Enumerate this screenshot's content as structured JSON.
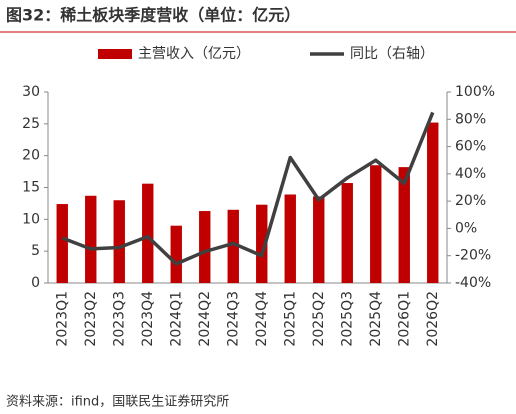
{
  "chart_data": {
    "type": "combo",
    "title": "图32：稀土板块季度营收（单位：亿元）",
    "source": "资料来源：ifind，国联民生证券研究所",
    "categories": [
      "2023Q1",
      "2023Q2",
      "2023Q3",
      "2023Q4",
      "2024Q1",
      "2024Q2",
      "2024Q3",
      "2024Q4",
      "2025Q1",
      "2025Q2",
      "2025Q3",
      "2025Q4",
      "2026Q1",
      "2026Q2"
    ],
    "series": [
      {
        "name": "主营收入（亿元）",
        "type": "bar",
        "color": "#c00000",
        "values": [
          12.4,
          13.7,
          13.0,
          15.6,
          9.0,
          11.3,
          11.5,
          12.3,
          13.9,
          13.6,
          15.7,
          18.5,
          18.2,
          25.2
        ]
      },
      {
        "name": "同比（右轴）",
        "type": "line",
        "axis": "y2",
        "color": "#404040",
        "values": [
          -7,
          -15,
          -14,
          -6,
          -26,
          -17,
          -11,
          -20,
          52,
          21,
          37,
          50,
          33,
          85
        ]
      }
    ],
    "ylim": [
      0,
      30
    ],
    "yticks": [
      0,
      5,
      10,
      15,
      20,
      25,
      30
    ],
    "y2lim": [
      -40,
      100
    ],
    "y2ticks": [
      {
        "value": -40,
        "label": "-40%"
      },
      {
        "value": -20,
        "label": "-20%"
      },
      {
        "value": 0,
        "label": "0%"
      },
      {
        "value": 20,
        "label": "20%"
      },
      {
        "value": 40,
        "label": "40%"
      },
      {
        "value": 60,
        "label": "60%"
      },
      {
        "value": 80,
        "label": "80%"
      },
      {
        "value": 100,
        "label": "100%"
      }
    ]
  }
}
